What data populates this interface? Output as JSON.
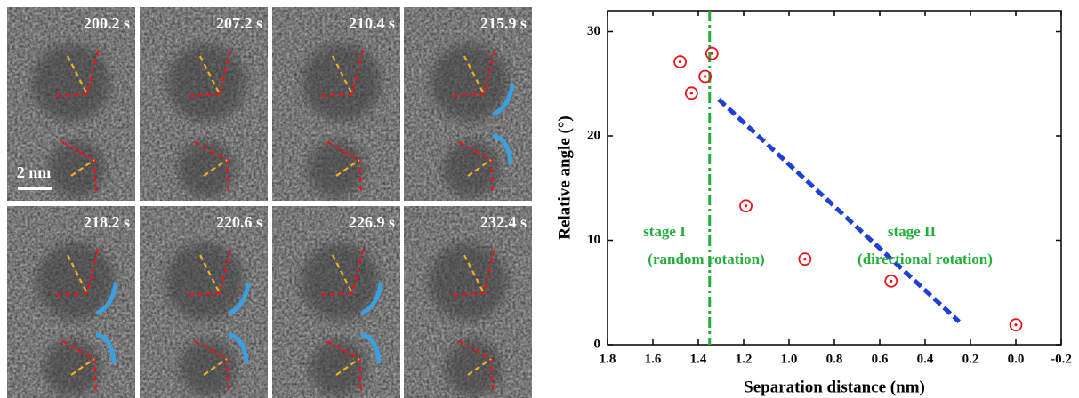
{
  "panels": [
    {
      "time": "200.2 s"
    },
    {
      "time": "207.2 s"
    },
    {
      "time": "210.4 s"
    },
    {
      "time": "215.9 s"
    },
    {
      "time": "218.2 s"
    },
    {
      "time": "220.6 s"
    },
    {
      "time": "226.9 s"
    },
    {
      "time": "232.4 s"
    }
  ],
  "scale_bar": "2 nm",
  "chart_data": {
    "type": "scatter",
    "xlabel": "Separation distance (nm)",
    "ylabel": "Relative angle (°)",
    "xlim": [
      1.8,
      -0.2
    ],
    "ylim": [
      0,
      32
    ],
    "xticks": [
      1.8,
      1.6,
      1.4,
      1.2,
      {
        "value": 1,
        "label": "1.0"
      },
      0.8,
      0.6,
      0.4,
      0.2,
      {
        "value": 0,
        "label": "0.0"
      },
      -0.2
    ],
    "yticks": [
      0,
      10,
      20,
      30
    ],
    "series": [
      {
        "color": "#e8141c",
        "x": [
          1.48,
          1.43,
          1.37,
          1.34,
          1.19,
          0.93,
          0.55,
          0.0
        ],
        "values": [
          27.1,
          24.1,
          25.7,
          27.9,
          13.3,
          8.2,
          6.1,
          1.9
        ]
      }
    ],
    "trend": {
      "color": "#1f3fd6",
      "x": [
        1.31,
        0.25
      ],
      "values": [
        23.5,
        2.2
      ]
    },
    "vline": {
      "x": 1.35,
      "color": "#22b03a"
    },
    "annotations": [
      "stage I",
      "(random rotation)",
      "stage II",
      "(directional rotation)"
    ],
    "annotation_color": "#22b03a"
  }
}
